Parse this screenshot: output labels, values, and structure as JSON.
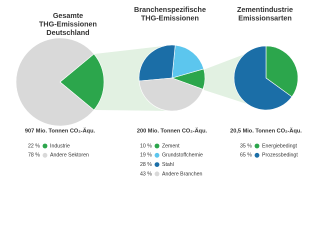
{
  "chart_data": [
    {
      "type": "pie",
      "title": [
        "Gesamte",
        "THG-Emissionen",
        "Deutschland"
      ],
      "total_label": "907 Mio. Tonnen CO₂-Äqu.",
      "categories": [
        "Industrie",
        "Andere Sektoren"
      ],
      "values": [
        22,
        78
      ],
      "value_labels": [
        "22 %",
        "78 %"
      ],
      "colors": [
        "#2ca64c",
        "#d9d9d9"
      ]
    },
    {
      "type": "pie",
      "title": [
        "Branchenspezifische",
        "THG-Emissionen"
      ],
      "total_label": "200 Mio. Tonnen CO₂-Äqu.",
      "categories": [
        "Zement",
        "Grundstoffchemie",
        "Stahl",
        "Andere Branchen"
      ],
      "values": [
        10,
        19,
        28,
        43
      ],
      "value_labels": [
        "10 %",
        "19 %",
        "28 %",
        "43 %"
      ],
      "colors": [
        "#2ca64c",
        "#5cc6ee",
        "#1b6ea7",
        "#d9d9d9"
      ]
    },
    {
      "type": "pie",
      "title": [
        "Zementindustrie",
        "Emissionsarten"
      ],
      "total_label": "20,5 Mio. Tonnen CO₂-Äqu.",
      "categories": [
        "Energiebedingt",
        "Prozessbedingt"
      ],
      "values": [
        35,
        65
      ],
      "value_labels": [
        "35 %",
        "65 %"
      ],
      "colors": [
        "#2ca64c",
        "#1b6ea7"
      ]
    }
  ]
}
